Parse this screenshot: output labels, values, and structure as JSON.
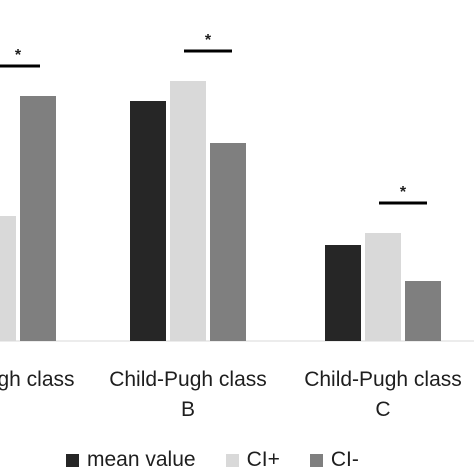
{
  "chart_data": {
    "type": "bar",
    "categories": [
      "Child-Pugh class A",
      "Child-Pugh class B",
      "Child-Pugh class C"
    ],
    "tick_labels": [
      [
        "gh class",
        ""
      ],
      [
        "Child-Pugh class",
        "B"
      ],
      [
        "Child-Pugh class",
        "C"
      ]
    ],
    "series": [
      {
        "name": "mean value",
        "color": "#262626",
        "values": [
          null,
          240,
          96
        ]
      },
      {
        "name": "CI+",
        "color": "#d9d9d9",
        "values": [
          125,
          260,
          108
        ]
      },
      {
        "name": "CI-",
        "color": "#7f7f7f",
        "values": [
          245,
          198,
          60
        ]
      }
    ],
    "significance": [
      {
        "category": 0,
        "label": "*"
      },
      {
        "category": 1,
        "label": "*"
      },
      {
        "category": 2,
        "label": "*"
      }
    ],
    "grid": false,
    "legend_position": "bottom"
  }
}
